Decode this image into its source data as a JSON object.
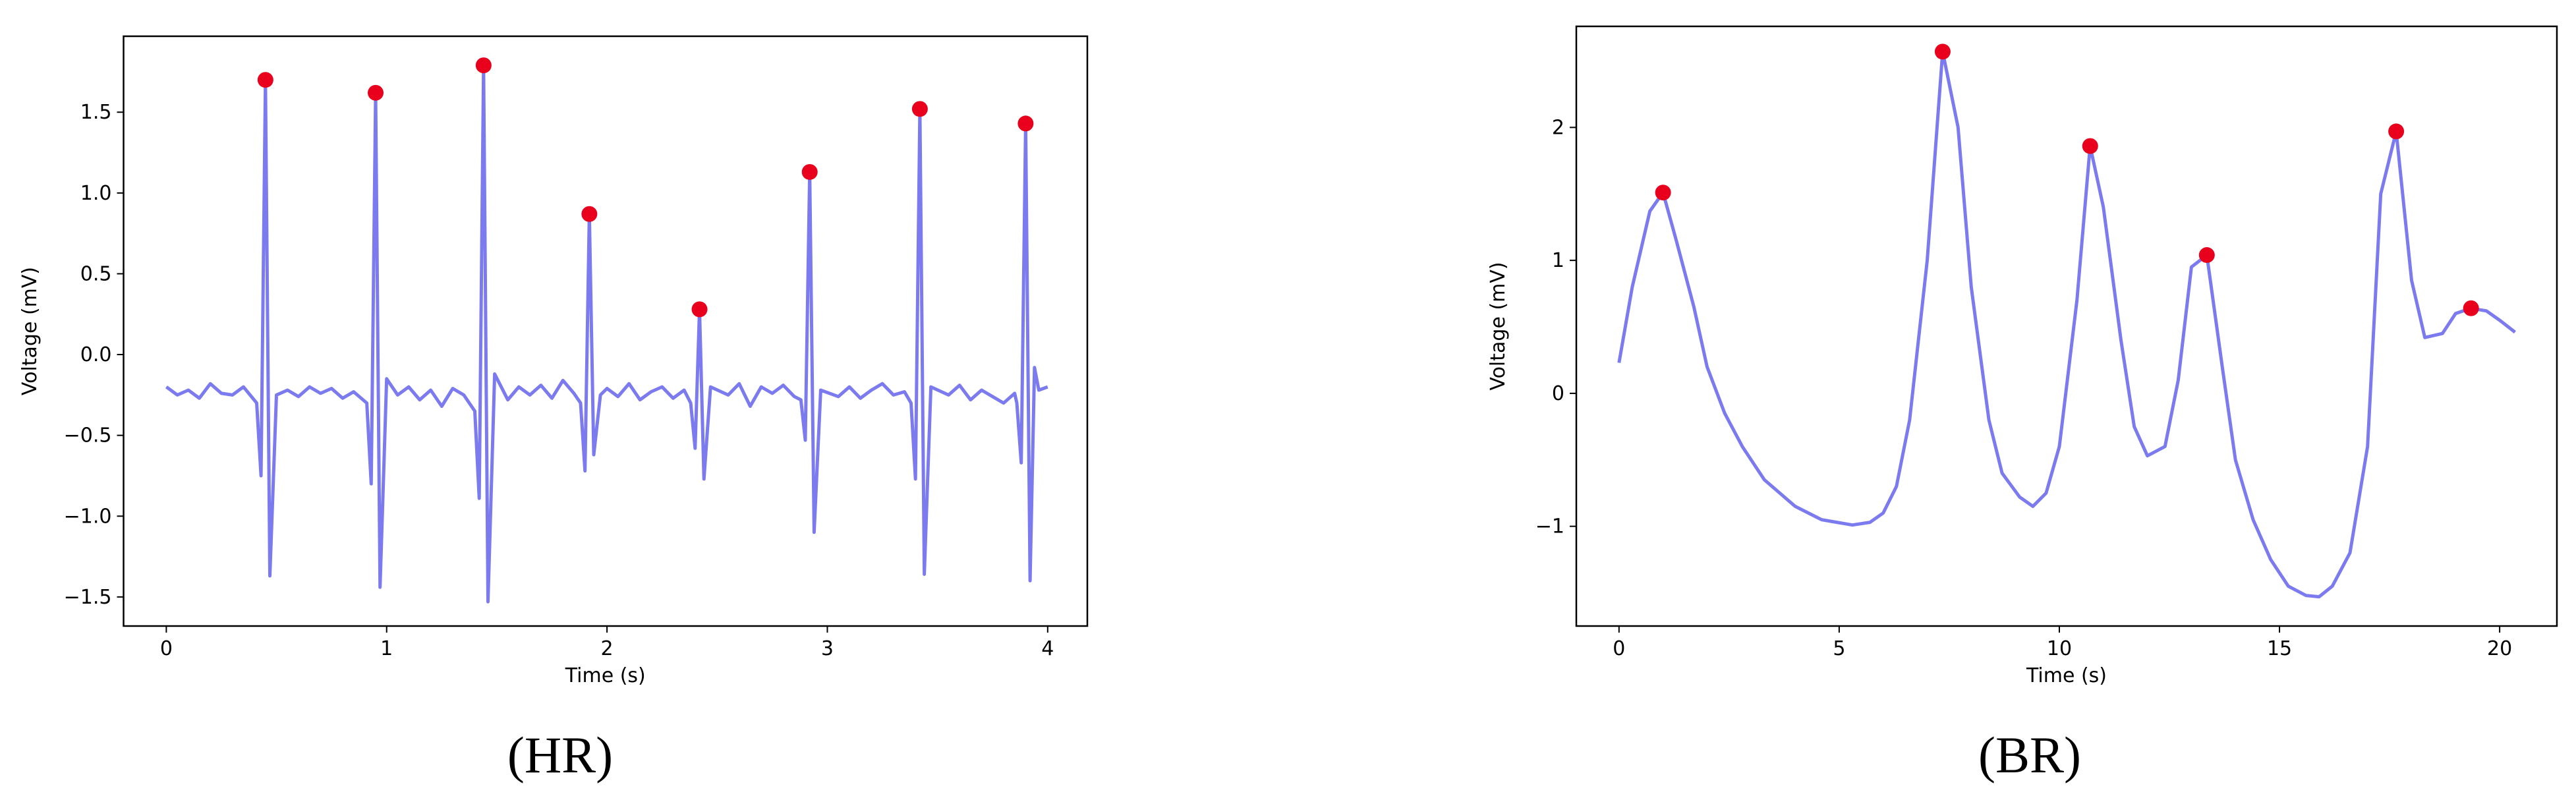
{
  "chart_data": [
    {
      "type": "line",
      "caption": "(HR)",
      "xlabel": "Time (s)",
      "ylabel": "Voltage (mV)",
      "color": "#7b7bef",
      "x": [
        0,
        0.05,
        0.1,
        0.15,
        0.2,
        0.25,
        0.3,
        0.35,
        0.41,
        0.43,
        0.45,
        0.47,
        0.5,
        0.55,
        0.6,
        0.65,
        0.7,
        0.75,
        0.8,
        0.85,
        0.91,
        0.93,
        0.95,
        0.97,
        1.0,
        1.05,
        1.1,
        1.15,
        1.2,
        1.25,
        1.3,
        1.35,
        1.4,
        1.42,
        1.44,
        1.46,
        1.49,
        1.55,
        1.6,
        1.65,
        1.7,
        1.75,
        1.8,
        1.85,
        1.88,
        1.9,
        1.92,
        1.94,
        1.97,
        2.0,
        2.05,
        2.1,
        2.15,
        2.2,
        2.25,
        2.3,
        2.35,
        2.38,
        2.4,
        2.42,
        2.44,
        2.47,
        2.55,
        2.6,
        2.65,
        2.7,
        2.75,
        2.8,
        2.85,
        2.88,
        2.9,
        2.92,
        2.94,
        2.97,
        3.05,
        3.1,
        3.15,
        3.2,
        3.25,
        3.3,
        3.35,
        3.38,
        3.4,
        3.42,
        3.44,
        3.47,
        3.55,
        3.6,
        3.65,
        3.7,
        3.75,
        3.8,
        3.85,
        3.86,
        3.88,
        3.9,
        3.92,
        3.94,
        3.96,
        4.0
      ],
      "values": [
        -0.2,
        -0.25,
        -0.22,
        -0.27,
        -0.18,
        -0.24,
        -0.25,
        -0.2,
        -0.3,
        -0.75,
        1.7,
        -1.37,
        -0.25,
        -0.22,
        -0.26,
        -0.2,
        -0.24,
        -0.21,
        -0.27,
        -0.23,
        -0.3,
        -0.8,
        1.62,
        -1.44,
        -0.15,
        -0.25,
        -0.2,
        -0.28,
        -0.22,
        -0.32,
        -0.21,
        -0.25,
        -0.35,
        -0.89,
        1.79,
        -1.53,
        -0.12,
        -0.28,
        -0.2,
        -0.25,
        -0.19,
        -0.27,
        -0.16,
        -0.24,
        -0.3,
        -0.72,
        0.87,
        -0.62,
        -0.25,
        -0.21,
        -0.26,
        -0.18,
        -0.28,
        -0.23,
        -0.2,
        -0.27,
        -0.22,
        -0.3,
        -0.58,
        0.28,
        -0.77,
        -0.2,
        -0.25,
        -0.18,
        -0.32,
        -0.2,
        -0.24,
        -0.19,
        -0.26,
        -0.28,
        -0.53,
        1.13,
        -1.1,
        -0.22,
        -0.26,
        -0.2,
        -0.27,
        -0.22,
        -0.18,
        -0.25,
        -0.23,
        -0.3,
        -0.77,
        1.52,
        -1.36,
        -0.2,
        -0.25,
        -0.19,
        -0.28,
        -0.22,
        -0.26,
        -0.3,
        -0.24,
        -0.3,
        -0.67,
        1.43,
        -1.4,
        -0.08,
        -0.22,
        -0.2
      ],
      "peaks": {
        "color": "#e8001c",
        "x": [
          0.45,
          0.95,
          1.44,
          1.92,
          2.42,
          2.92,
          3.42,
          3.9
        ],
        "values": [
          1.7,
          1.62,
          1.79,
          0.87,
          0.28,
          1.13,
          1.52,
          1.43
        ]
      },
      "xlim": [
        -0.194,
        4.18
      ],
      "ylim": [
        -1.68,
        1.97
      ],
      "xticks": [
        0,
        1,
        2,
        3,
        4
      ],
      "yticks": [
        {
          "value": -1.5,
          "label": "−1.5"
        },
        {
          "value": -1,
          "label": "−1.0"
        },
        {
          "value": -0.5,
          "label": "−0.5"
        },
        {
          "value": 0,
          "label": "0.0"
        },
        0.5,
        {
          "value": 1,
          "label": "1.0"
        },
        1.5
      ]
    },
    {
      "type": "line",
      "caption": "(BR)",
      "xlabel": "Time (s)",
      "ylabel": "Voltage (mV)",
      "color": "#7b7bef",
      "x": [
        0,
        0.3,
        0.7,
        1.0,
        1.3,
        1.7,
        2.0,
        2.4,
        2.8,
        3.3,
        4.0,
        4.6,
        5.3,
        5.7,
        6.0,
        6.3,
        6.6,
        7.0,
        7.35,
        7.7,
        8.0,
        8.4,
        8.7,
        9.1,
        9.4,
        9.7,
        10.0,
        10.4,
        10.7,
        11.0,
        11.4,
        11.7,
        12.0,
        12.4,
        12.7,
        13.0,
        13.35,
        13.7,
        14.0,
        14.4,
        14.8,
        15.2,
        15.6,
        15.9,
        16.2,
        16.6,
        17.0,
        17.3,
        17.65,
        18.0,
        18.3,
        18.7,
        19.0,
        19.35,
        19.7,
        20.0,
        20.35
      ],
      "values": [
        0.23,
        0.8,
        1.37,
        1.51,
        1.15,
        0.65,
        0.2,
        -0.15,
        -0.4,
        -0.65,
        -0.85,
        -0.95,
        -0.99,
        -0.97,
        -0.9,
        -0.7,
        -0.2,
        1.0,
        2.57,
        2.0,
        0.8,
        -0.2,
        -0.6,
        -0.78,
        -0.85,
        -0.75,
        -0.4,
        0.7,
        1.86,
        1.4,
        0.4,
        -0.25,
        -0.47,
        -0.4,
        0.1,
        0.95,
        1.04,
        0.2,
        -0.5,
        -0.95,
        -1.25,
        -1.45,
        -1.52,
        -1.53,
        -1.45,
        -1.2,
        -0.4,
        1.5,
        1.97,
        0.85,
        0.42,
        0.45,
        0.6,
        0.64,
        0.62,
        0.55,
        0.46
      ],
      "peaks": {
        "color": "#e8001c",
        "x": [
          1.0,
          7.35,
          10.7,
          13.35,
          17.65,
          19.35
        ],
        "values": [
          1.51,
          2.57,
          1.86,
          1.04,
          1.97,
          0.64
        ]
      },
      "xlim": [
        -0.97,
        21.3
      ],
      "ylim": [
        -1.75,
        2.76
      ],
      "xticks": [
        0,
        5,
        10,
        15,
        20
      ],
      "yticks": [
        {
          "value": -1,
          "label": "−1"
        },
        0,
        1,
        2
      ]
    }
  ]
}
